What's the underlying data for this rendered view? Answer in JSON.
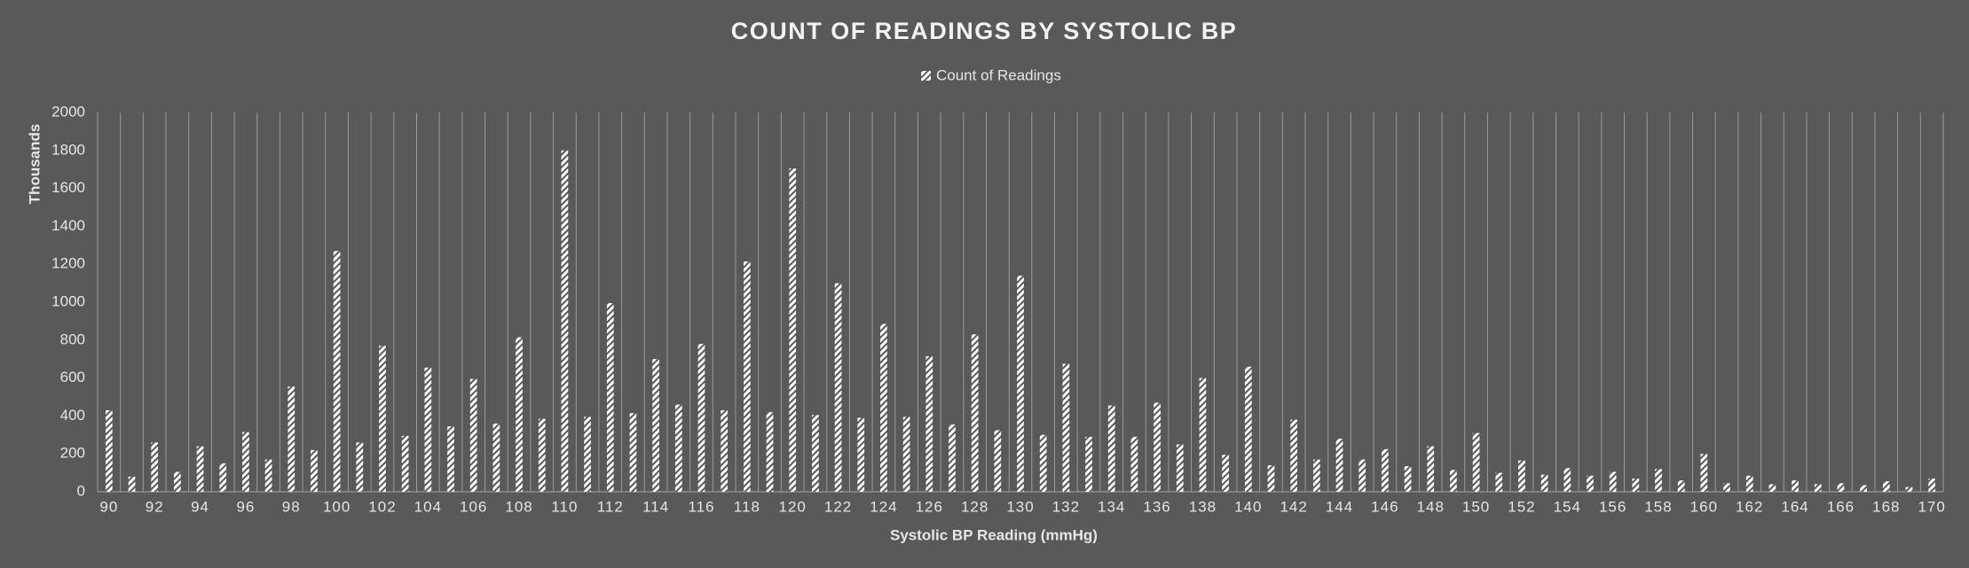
{
  "chart_data": {
    "type": "bar",
    "title": "COUNT OF READINGS BY SYSTOLIC BP",
    "x_label": "Systolic BP Reading (mmHg)",
    "y_label": "Thousands",
    "categories": [
      90,
      null,
      92,
      null,
      94,
      null,
      96,
      null,
      98,
      null,
      100,
      null,
      102,
      null,
      104,
      null,
      106,
      null,
      108,
      null,
      110,
      null,
      112,
      null,
      114,
      null,
      116,
      null,
      118,
      null,
      120,
      null,
      122,
      null,
      124,
      null,
      126,
      null,
      128,
      null,
      130,
      null,
      132,
      null,
      134,
      null,
      136,
      null,
      138,
      null,
      140,
      null,
      142,
      null,
      144,
      null,
      146,
      null,
      148,
      null,
      150,
      null,
      152,
      null,
      154,
      null,
      156,
      null,
      158,
      null,
      160,
      null,
      162,
      null,
      164,
      null,
      166,
      null,
      168,
      null,
      170
    ],
    "series": [
      {
        "name": "Count of Readings",
        "color": "#ffffff",
        "values": [
          430,
          80,
          260,
          105,
          240,
          150,
          315,
          170,
          555,
          220,
          1270,
          260,
          770,
          295,
          655,
          345,
          595,
          360,
          815,
          385,
          1800,
          395,
          995,
          415,
          700,
          460,
          780,
          430,
          1215,
          420,
          1705,
          405,
          1100,
          390,
          885,
          395,
          715,
          355,
          830,
          325,
          1140,
          300,
          675,
          290,
          455,
          290,
          470,
          250,
          600,
          195,
          660,
          140,
          380,
          170,
          280,
          170,
          225,
          135,
          240,
          115,
          310,
          100,
          165,
          90,
          125,
          85,
          105,
          70,
          120,
          60,
          200,
          45,
          85,
          40,
          60,
          40,
          45,
          35,
          55,
          25,
          70
        ]
      }
    ],
    "ylim": [
      0,
      2000
    ],
    "yticks": [
      0,
      200,
      400,
      600,
      800,
      1000,
      1200,
      1400,
      1600,
      1800,
      2000
    ],
    "grid": true,
    "legend": "top"
  }
}
